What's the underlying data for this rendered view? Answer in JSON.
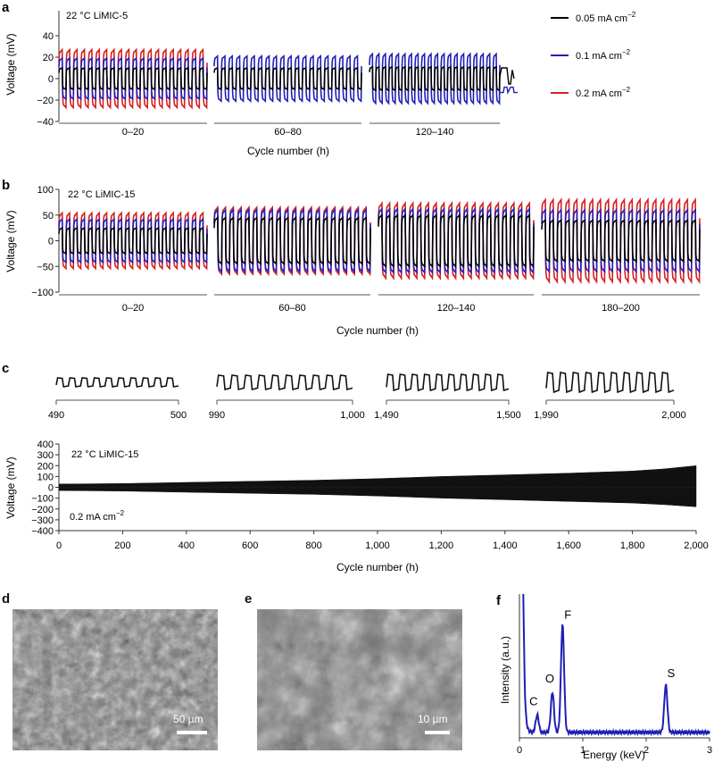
{
  "panels": {
    "a": {
      "letter": "a",
      "annotation": "22 °C LiMIC-5",
      "ylabel": "Voltage (mV)",
      "xlabel": "Cycle number (h)",
      "yticks": [
        40,
        20,
        0,
        -20,
        -40
      ],
      "ylim": [
        -40,
        40
      ],
      "segments": [
        "0–20",
        "60–80",
        "120–140"
      ]
    },
    "b": {
      "letter": "b",
      "annotation": "22 °C LiMIC-15",
      "ylabel": "Voltage (mV)",
      "xlabel": "Cycle number (h)",
      "yticks": [
        100,
        50,
        0,
        -50,
        -100
      ],
      "ylim": [
        -100,
        100
      ],
      "segments": [
        "0–20",
        "60–80",
        "120–140",
        "180–200"
      ]
    },
    "c": {
      "letter": "c",
      "insets": [
        {
          "start": "490",
          "end": "500"
        },
        {
          "start": "990",
          "end": "1,000"
        },
        {
          "start": "1,490",
          "end": "1,500"
        },
        {
          "start": "1,990",
          "end": "2,000"
        }
      ],
      "annotation": "22 °C  LiMIC-15",
      "current_note": "0.2 mA cm",
      "current_sup": "−2",
      "ylabel": "Voltage (mV)",
      "xlabel": "Cycle number (h)",
      "yticks": [
        400,
        300,
        200,
        100,
        0,
        -100,
        -200,
        -300,
        -400
      ],
      "ylim": [
        -400,
        400
      ],
      "xticks": [
        "0",
        "200",
        "400",
        "600",
        "800",
        "1,000",
        "1,200",
        "1,400",
        "1,600",
        "1,800",
        "2,000"
      ],
      "xlim": [
        0,
        2000
      ]
    },
    "d": {
      "letter": "d",
      "scale": "50 µm"
    },
    "e": {
      "letter": "e",
      "scale": "10 µm"
    },
    "f": {
      "letter": "f",
      "ylabel": "Intensity (a.u.)",
      "xlabel": "Energy (keV)",
      "xticks": [
        "0",
        "1",
        "2",
        "3"
      ],
      "xlim": [
        0,
        3
      ],
      "peaks": [
        {
          "label": "C",
          "energy": 0.28
        },
        {
          "label": "O",
          "energy": 0.52
        },
        {
          "label": "F",
          "energy": 0.68
        },
        {
          "label": "S",
          "energy": 2.31
        }
      ]
    }
  },
  "legend": [
    {
      "label": "0.05 mA cm",
      "sup": "−2",
      "color": "#000000"
    },
    {
      "label": "0.1 mA cm",
      "sup": "−2",
      "color": "#1f1fb4"
    },
    {
      "label": "0.2 mA cm",
      "sup": "−2",
      "color": "#d42020"
    }
  ],
  "chart_data": [
    {
      "id": "a",
      "type": "line",
      "ylabel": "Voltage (mV)",
      "xlabel": "Cycle number (h)",
      "ylim": [
        -40,
        40
      ],
      "segments": [
        {
          "label": "0–20",
          "cycles": 20,
          "series": [
            {
              "name": "0.05 mA cm−2",
              "amplitude": 10
            },
            {
              "name": "0.1 mA cm−2",
              "amplitude": 19
            },
            {
              "name": "0.2 mA cm−2",
              "amplitude": 27
            }
          ]
        },
        {
          "label": "60–80",
          "cycles": 20,
          "series": [
            {
              "name": "0.05 mA cm−2",
              "amplitude": 10
            },
            {
              "name": "0.1 mA cm−2",
              "amplitude": 21
            }
          ]
        },
        {
          "label": "120–140",
          "cycles": 20,
          "series": [
            {
              "name": "0.05 mA cm−2",
              "amplitude": 11
            },
            {
              "name": "0.1 mA cm−2",
              "amplitude": 23
            }
          ]
        }
      ]
    },
    {
      "id": "b",
      "type": "line",
      "ylabel": "Voltage (mV)",
      "xlabel": "Cycle number (h)",
      "ylim": [
        -100,
        100
      ],
      "segments": [
        {
          "label": "0–20",
          "cycles": 20,
          "series": [
            {
              "name": "0.05 mA cm−2",
              "amplitude": 25
            },
            {
              "name": "0.1 mA cm−2",
              "amplitude": 42
            },
            {
              "name": "0.2 mA cm−2",
              "amplitude": 54
            }
          ]
        },
        {
          "label": "60–80",
          "cycles": 20,
          "series": [
            {
              "name": "0.05 mA cm−2",
              "amplitude": 45
            },
            {
              "name": "0.1 mA cm−2",
              "amplitude": 60
            },
            {
              "name": "0.2 mA cm−2",
              "amplitude": 65
            }
          ]
        },
        {
          "label": "120–140",
          "cycles": 20,
          "series": [
            {
              "name": "0.05 mA cm−2",
              "amplitude": 50
            },
            {
              "name": "0.1 mA cm−2",
              "amplitude": 62
            },
            {
              "name": "0.2 mA cm−2",
              "amplitude": 73
            }
          ]
        },
        {
          "label": "180–200",
          "cycles": 20,
          "series": [
            {
              "name": "0.05 mA cm−2",
              "amplitude": 40
            },
            {
              "name": "0.1 mA cm−2",
              "amplitude": 60
            },
            {
              "name": "0.2 mA cm−2",
              "amplitude": 80
            }
          ]
        }
      ]
    },
    {
      "id": "c",
      "type": "line",
      "xlabel": "Cycle number (h)",
      "ylabel": "Voltage (mV)",
      "xlim": [
        0,
        2000
      ],
      "ylim": [
        -400,
        400
      ],
      "series": [
        {
          "x": [
            0,
            200,
            400,
            600,
            800,
            1000,
            1200,
            1400,
            1600,
            1800,
            1900,
            2000
          ],
          "y_max": [
            30,
            35,
            45,
            55,
            65,
            80,
            100,
            115,
            130,
            150,
            170,
            200
          ],
          "y_min": [
            -30,
            -35,
            -45,
            -55,
            -65,
            -80,
            -100,
            -115,
            -130,
            -145,
            -160,
            -180
          ]
        }
      ]
    },
    {
      "id": "f",
      "type": "line",
      "xlabel": "Energy (keV)",
      "ylabel": "Intensity (a.u.)",
      "xlim": [
        0,
        3
      ],
      "peaks": [
        {
          "label": "C",
          "energy": 0.28,
          "relative_intensity": 0.12
        },
        {
          "label": "O",
          "energy": 0.52,
          "relative_intensity": 0.28
        },
        {
          "label": "F",
          "energy": 0.68,
          "relative_intensity": 0.75
        },
        {
          "label": "S",
          "energy": 2.31,
          "relative_intensity": 0.33
        }
      ]
    }
  ]
}
